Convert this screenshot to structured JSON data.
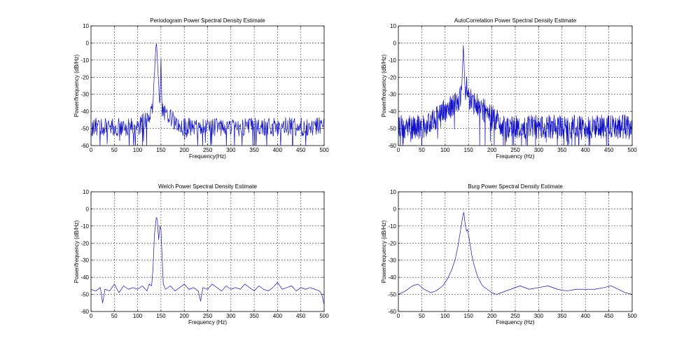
{
  "figure": {
    "background": "#ffffff",
    "line_color": "#1010c8"
  },
  "chart_data": [
    {
      "type": "line",
      "id": "periodogram",
      "title": "Periodogram Power Spectral Density Estimate",
      "xlabel": "Frequency(Hz)",
      "ylabel": "Power/frequency (dB/Hz)",
      "xlim": [
        0,
        500
      ],
      "ylim": [
        -60,
        10
      ],
      "xticks": [
        0,
        50,
        100,
        150,
        200,
        250,
        300,
        350,
        400,
        450,
        500
      ],
      "yticks": [
        10,
        0,
        -10,
        -20,
        -30,
        -40,
        -50,
        -60
      ],
      "xtick_labels": [
        "0",
        "50",
        "100",
        "150",
        "200",
        "250",
        "300",
        "350",
        "400",
        "450",
        "500"
      ],
      "ytick_labels": [
        "10",
        "0",
        "-10",
        "-20",
        "-30",
        "-40",
        "-50",
        "-60"
      ],
      "grid": true,
      "series": [
        {
          "name": "Periodogram",
          "style": "noisy",
          "noise": 5.5,
          "noise_floor": -49,
          "peaks": [
            [
              140,
              2,
              3.5
            ],
            [
              150,
              -10,
              1.5
            ]
          ],
          "shoulder": [
            145,
            7,
            -36
          ]
        }
      ]
    },
    {
      "type": "line",
      "id": "autocorrelation",
      "title": "AutoCorrelation Power Spectral Density Estimate",
      "xlabel": "Frequency (Hz)",
      "ylabel": "Power/frequency (dB/Hz)",
      "xlim": [
        0,
        500
      ],
      "ylim": [
        -60,
        10
      ],
      "xticks": [
        0,
        50,
        100,
        150,
        200,
        250,
        300,
        350,
        400,
        450,
        500
      ],
      "yticks": [
        10,
        0,
        -10,
        -20,
        -30,
        -40,
        -50,
        -60
      ],
      "xtick_labels": [
        "0",
        "50",
        "100",
        "150",
        "200",
        "250",
        "300",
        "350",
        "400",
        "450",
        "500"
      ],
      "ytick_labels": [
        "10",
        "0",
        "-10",
        "-20",
        "-30",
        "-40",
        "-50",
        "-60"
      ],
      "grid": true,
      "series": [
        {
          "name": "AutoCorrelation",
          "style": "dense",
          "noise": 7,
          "noise_floor": -49,
          "peaks": [
            [
              139,
              -1,
              2.5
            ],
            [
              146,
              -18,
              1.5
            ]
          ],
          "shoulder": [
            142,
            14,
            -30
          ]
        }
      ]
    },
    {
      "type": "line",
      "id": "welch",
      "title": "Welch Power Spectral Density Estimate",
      "xlabel": "Frequency (Hz)",
      "ylabel": "Power/frequency (dB/Hz)",
      "xlim": [
        0,
        500
      ],
      "ylim": [
        -60,
        10
      ],
      "xticks": [
        0,
        50,
        100,
        150,
        200,
        250,
        300,
        350,
        400,
        450,
        500
      ],
      "yticks": [
        10,
        0,
        -10,
        -20,
        -30,
        -40,
        -50,
        -60
      ],
      "xtick_labels": [
        "0",
        "50",
        "100",
        "150",
        "200",
        "250",
        "300",
        "350",
        "400",
        "450",
        "500"
      ],
      "ytick_labels": [
        "10",
        "0",
        "-10",
        "-20",
        "-30",
        "-40",
        "-50",
        "-60"
      ],
      "grid": true,
      "series": [
        {
          "name": "Welch",
          "style": "points",
          "x": [
            0,
            10,
            20,
            25,
            30,
            40,
            50,
            60,
            70,
            80,
            90,
            100,
            110,
            120,
            125,
            130,
            133,
            136,
            140,
            142,
            145,
            148,
            150,
            152,
            155,
            160,
            170,
            180,
            190,
            200,
            210,
            220,
            230,
            235,
            240,
            250,
            260,
            270,
            280,
            290,
            300,
            310,
            320,
            330,
            340,
            350,
            360,
            370,
            380,
            390,
            400,
            410,
            420,
            430,
            440,
            450,
            460,
            470,
            480,
            490,
            495,
            500
          ],
          "y": [
            -47,
            -48,
            -46,
            -55,
            -47,
            -48,
            -44,
            -49,
            -45,
            -47,
            -46,
            -47,
            -45,
            -48,
            -44,
            -45,
            -35,
            -15,
            -5,
            -6,
            -18,
            -10,
            -12,
            -25,
            -44,
            -47,
            -45,
            -48,
            -46,
            -44,
            -47,
            -46,
            -48,
            -54,
            -46,
            -47,
            -44,
            -46,
            -48,
            -45,
            -47,
            -46,
            -47,
            -44,
            -46,
            -48,
            -45,
            -47,
            -48,
            -46,
            -43,
            -47,
            -46,
            -45,
            -48,
            -46,
            -47,
            -46,
            -47,
            -48,
            -50,
            -56
          ]
        }
      ]
    },
    {
      "type": "line",
      "id": "burg",
      "title": "Burg Power Spectral Density Estimate",
      "xlabel": "Frequency (Hz)",
      "ylabel": "Power/frequency (dB/Hz)",
      "xlim": [
        0,
        500
      ],
      "ylim": [
        -60,
        10
      ],
      "xticks": [
        0,
        50,
        100,
        150,
        200,
        250,
        300,
        350,
        400,
        450,
        500
      ],
      "yticks": [
        10,
        0,
        -10,
        -20,
        -30,
        -40,
        -50,
        -60
      ],
      "xtick_labels": [
        "0",
        "50",
        "100",
        "150",
        "200",
        "250",
        "300",
        "350",
        "400",
        "450",
        "500"
      ],
      "ytick_labels": [
        "10",
        "0",
        "-10",
        "-20",
        "-30",
        "-40",
        "-50",
        "-60"
      ],
      "grid": true,
      "series": [
        {
          "name": "Burg",
          "style": "points",
          "x": [
            0,
            15,
            30,
            42,
            55,
            70,
            80,
            95,
            105,
            115,
            122,
            128,
            132,
            135,
            138,
            140,
            142,
            144,
            146,
            148,
            150,
            153,
            157,
            162,
            170,
            180,
            190,
            200,
            210,
            220,
            240,
            260,
            280,
            300,
            320,
            340,
            360,
            380,
            400,
            420,
            440,
            455,
            470,
            485,
            500
          ],
          "y": [
            -50,
            -48,
            -45,
            -44,
            -47,
            -49,
            -48,
            -45,
            -41,
            -35,
            -29,
            -21,
            -14,
            -9,
            -4,
            -2,
            -7,
            -11,
            -13,
            -12,
            -15,
            -20,
            -27,
            -33,
            -40,
            -45,
            -47,
            -49,
            -50,
            -49,
            -47,
            -45,
            -47,
            -46,
            -45,
            -47,
            -48,
            -47,
            -47,
            -47,
            -46,
            -45,
            -47,
            -49,
            -50
          ]
        }
      ]
    }
  ]
}
